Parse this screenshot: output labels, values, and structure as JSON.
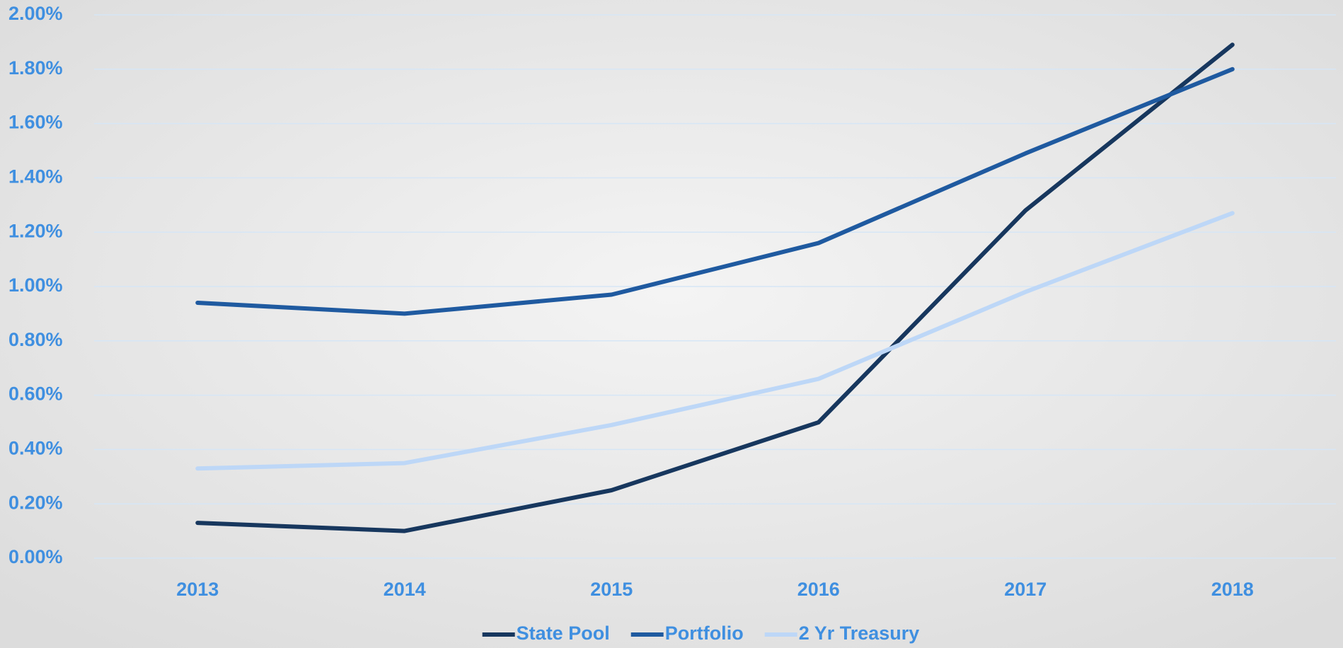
{
  "chart_data": {
    "type": "line",
    "categories": [
      "2013",
      "2014",
      "2015",
      "2016",
      "2017",
      "2018"
    ],
    "series": [
      {
        "name": "State Pool",
        "color": "#17375e",
        "values": [
          0.13,
          0.1,
          0.25,
          0.5,
          1.28,
          1.89
        ]
      },
      {
        "name": "Portfolio",
        "color": "#1f5aa0",
        "values": [
          0.94,
          0.9,
          0.97,
          1.16,
          1.49,
          1.8
        ]
      },
      {
        "name": "2 Yr Treasury",
        "color": "#bdd7f7",
        "values": [
          0.33,
          0.35,
          0.49,
          0.66,
          0.98,
          1.27
        ]
      }
    ],
    "ylim": [
      0,
      2
    ],
    "yticks": [
      {
        "value": 0,
        "label": "0.00%"
      },
      {
        "value": 0.2,
        "label": "0.20%"
      },
      {
        "value": 0.4,
        "label": "0.40%"
      },
      {
        "value": 0.6,
        "label": "0.60%"
      },
      {
        "value": 0.8,
        "label": "0.80%"
      },
      {
        "value": 1.0,
        "label": "1.00%"
      },
      {
        "value": 1.2,
        "label": "1.20%"
      },
      {
        "value": 1.4,
        "label": "1.40%"
      },
      {
        "value": 1.6,
        "label": "1.60%"
      },
      {
        "value": 1.8,
        "label": "1.80%"
      },
      {
        "value": 2.0,
        "label": "2.00%"
      }
    ],
    "grid": true,
    "legend": "bottom"
  }
}
